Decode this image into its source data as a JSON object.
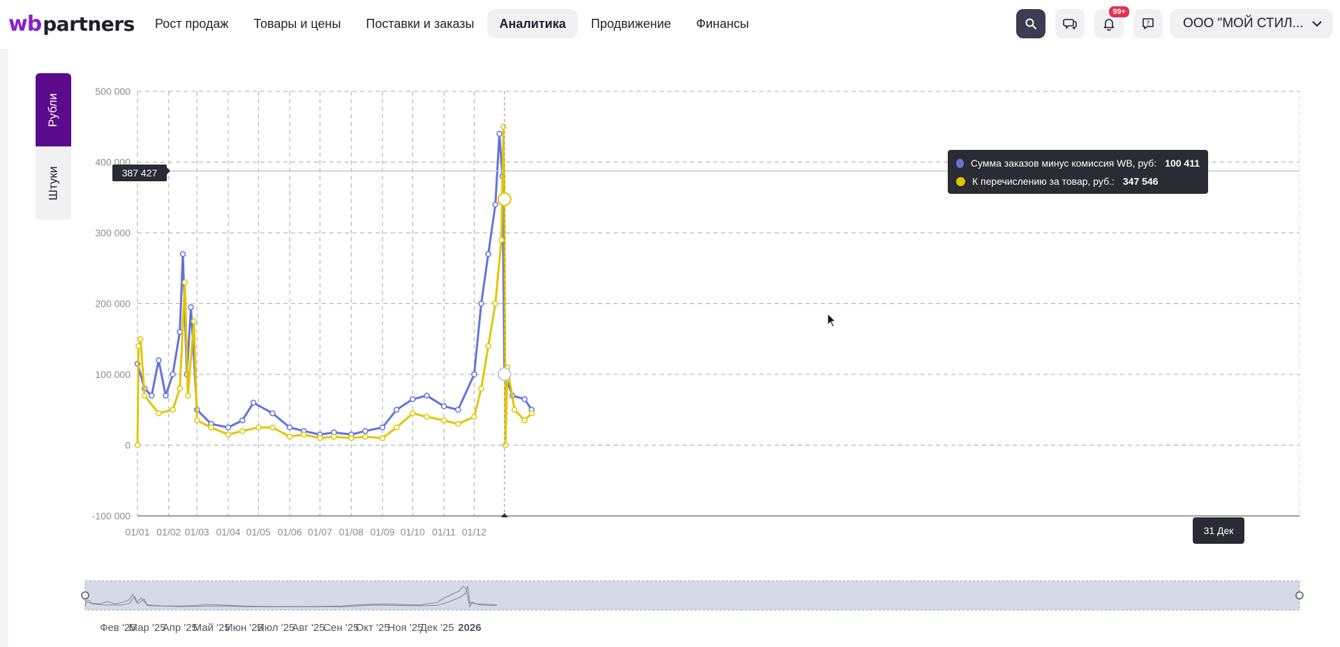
{
  "header": {
    "logo_wb": "wb",
    "logo_partners": "partners",
    "nav": [
      {
        "label": "Рост продаж",
        "active": false
      },
      {
        "label": "Товары и цены",
        "active": false
      },
      {
        "label": "Поставки и заказы",
        "active": false
      },
      {
        "label": "Аналитика",
        "active": true
      },
      {
        "label": "Продвижение",
        "active": false
      },
      {
        "label": "Финансы",
        "active": false
      }
    ],
    "notifications_badge": "99+",
    "org_name": "ООО \"МОЙ СТИЛ..."
  },
  "toggle": {
    "rubles": "Рубли",
    "pieces": "Штуки",
    "selected": "Рубли"
  },
  "tooltip": {
    "rows": [
      {
        "label": "Сумма заказов минус комиссия WB, руб:",
        "value": "100 411",
        "color": "#6371de"
      },
      {
        "label": "К перечислению за товар, руб.:",
        "value": "347 546",
        "color": "#e0c600"
      }
    ]
  },
  "crosshair": {
    "y_label": "387 427",
    "x_label": "31 Дек"
  },
  "chart_data": {
    "type": "line",
    "y_ticks": [
      "500 000",
      "400 000",
      "300 000",
      "200 000",
      "100 000",
      "0",
      "-100 000"
    ],
    "ylim": [
      -100000,
      500000
    ],
    "x_ticks": [
      "01/01",
      "01/02",
      "01/03",
      "01/04",
      "01/05",
      "01/06",
      "01/07",
      "01/08",
      "01/09",
      "01/10",
      "01/11",
      "01/12"
    ],
    "navigator_labels": [
      "Фев '25",
      "Мар '25",
      "Апр '25",
      "Май '25",
      "Июн '25",
      "Июл '25",
      "Авг '25",
      "Сен '25",
      "Окт '25",
      "Ноя '25",
      "Дек '25",
      "2026"
    ],
    "grid": true,
    "series": [
      {
        "color": "#6371de",
        "points": [
          [
            "2025-01-01",
            115000
          ],
          [
            "2025-01-08",
            80000
          ],
          [
            "2025-01-15",
            70000
          ],
          [
            "2025-01-22",
            120000
          ],
          [
            "2025-01-29",
            70000
          ],
          [
            "2025-02-05",
            100000
          ],
          [
            "2025-02-12",
            160000
          ],
          [
            "2025-02-15",
            270000
          ],
          [
            "2025-02-19",
            100000
          ],
          [
            "2025-02-23",
            195000
          ],
          [
            "2025-03-01",
            50000
          ],
          [
            "2025-03-15",
            30000
          ],
          [
            "2025-04-01",
            25000
          ],
          [
            "2025-04-15",
            35000
          ],
          [
            "2025-04-26",
            60000
          ],
          [
            "2025-05-15",
            45000
          ],
          [
            "2025-06-01",
            25000
          ],
          [
            "2025-06-15",
            20000
          ],
          [
            "2025-07-01",
            15000
          ],
          [
            "2025-07-15",
            18000
          ],
          [
            "2025-08-01",
            15000
          ],
          [
            "2025-08-15",
            20000
          ],
          [
            "2025-09-01",
            25000
          ],
          [
            "2025-09-15",
            50000
          ],
          [
            "2025-10-01",
            65000
          ],
          [
            "2025-10-15",
            70000
          ],
          [
            "2025-11-01",
            55000
          ],
          [
            "2025-11-15",
            50000
          ],
          [
            "2025-12-01",
            100000
          ],
          [
            "2025-12-08",
            200000
          ],
          [
            "2025-12-15",
            270000
          ],
          [
            "2025-12-22",
            340000
          ],
          [
            "2025-12-26",
            440000
          ],
          [
            "2025-12-29",
            380000
          ],
          [
            "2025-12-31",
            100411
          ],
          [
            "2026-01-08",
            70000
          ],
          [
            "2026-01-20",
            65000
          ],
          [
            "2026-01-27",
            50000
          ]
        ]
      },
      {
        "color": "#e0c600",
        "points": [
          [
            "2025-01-01",
            0
          ],
          [
            "2025-01-02",
            140000
          ],
          [
            "2025-01-04",
            150000
          ],
          [
            "2025-01-08",
            70000
          ],
          [
            "2025-01-22",
            45000
          ],
          [
            "2025-02-05",
            50000
          ],
          [
            "2025-02-12",
            80000
          ],
          [
            "2025-02-17",
            230000
          ],
          [
            "2025-02-20",
            70000
          ],
          [
            "2025-02-26",
            175000
          ],
          [
            "2025-03-01",
            35000
          ],
          [
            "2025-03-15",
            25000
          ],
          [
            "2025-04-01",
            15000
          ],
          [
            "2025-04-15",
            20000
          ],
          [
            "2025-05-01",
            25000
          ],
          [
            "2025-05-15",
            25000
          ],
          [
            "2025-06-01",
            12000
          ],
          [
            "2025-06-15",
            15000
          ],
          [
            "2025-07-01",
            10000
          ],
          [
            "2025-07-15",
            12000
          ],
          [
            "2025-08-01",
            10000
          ],
          [
            "2025-08-15",
            12000
          ],
          [
            "2025-09-01",
            10000
          ],
          [
            "2025-09-15",
            25000
          ],
          [
            "2025-10-01",
            45000
          ],
          [
            "2025-10-15",
            40000
          ],
          [
            "2025-11-01",
            35000
          ],
          [
            "2025-11-15",
            30000
          ],
          [
            "2025-12-01",
            40000
          ],
          [
            "2025-12-08",
            80000
          ],
          [
            "2025-12-15",
            140000
          ],
          [
            "2025-12-22",
            200000
          ],
          [
            "2025-12-28",
            290000
          ],
          [
            "2025-12-30",
            450000
          ],
          [
            "2025-12-31",
            347546
          ],
          [
            "2026-01-01",
            0
          ],
          [
            "2026-01-03",
            110000
          ],
          [
            "2026-01-10",
            50000
          ],
          [
            "2026-01-20",
            35000
          ],
          [
            "2026-01-27",
            45000
          ]
        ]
      }
    ]
  }
}
